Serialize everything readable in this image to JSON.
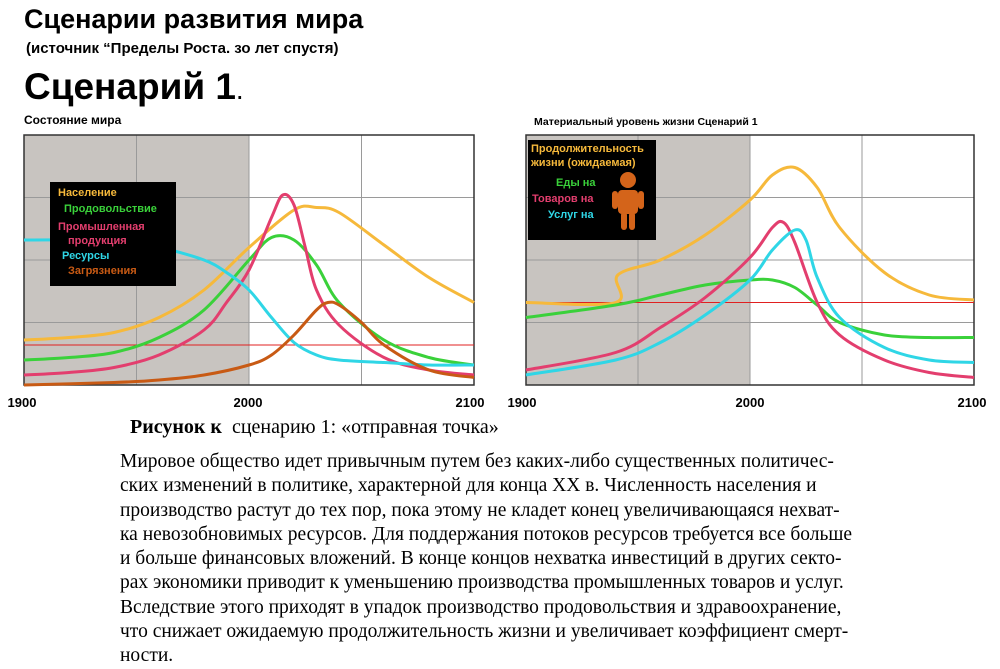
{
  "header": {
    "title": "Сценарии развития мира",
    "source": "(источник “Пределы Роста. зо лет спустя)",
    "scenario": "Сценарий 1",
    "scenario_dot": "."
  },
  "colors": {
    "population": "#f6b93b",
    "food": "#3ad13a",
    "industrial": "#e33e6e",
    "resources": "#2fd6e6",
    "pollution": "#c85a14",
    "reference": "#e02020",
    "shade": "#c8c4c0",
    "legend_bg": "#000000"
  },
  "chart_data": [
    {
      "type": "line",
      "title": "Состояние мира",
      "x_ticks": [
        "1900",
        "2000",
        "2100"
      ],
      "xlim": [
        1900,
        2100
      ],
      "ylim": [
        0,
        1
      ],
      "grid": true,
      "shaded_range": [
        1900,
        2000
      ],
      "reference_line": 0.16,
      "legend_position": "left",
      "series": [
        {
          "name": "Население",
          "color": "#f6b93b",
          "x": [
            1900,
            1920,
            1940,
            1960,
            1980,
            2000,
            2020,
            2030,
            2040,
            2060,
            2080,
            2100
          ],
          "y": [
            0.18,
            0.19,
            0.21,
            0.27,
            0.38,
            0.55,
            0.7,
            0.71,
            0.69,
            0.56,
            0.43,
            0.33
          ]
        },
        {
          "name": "Продовольствие",
          "color": "#3ad13a",
          "x": [
            1900,
            1920,
            1940,
            1960,
            1980,
            2000,
            2010,
            2020,
            2030,
            2040,
            2060,
            2080,
            2100
          ],
          "y": [
            0.1,
            0.11,
            0.13,
            0.19,
            0.3,
            0.5,
            0.59,
            0.58,
            0.48,
            0.33,
            0.18,
            0.11,
            0.08
          ]
        },
        {
          "name": "Промышленная продукция",
          "color": "#e33e6e",
          "x": [
            1900,
            1920,
            1940,
            1960,
            1980,
            1990,
            2000,
            2010,
            2015,
            2020,
            2025,
            2030,
            2040,
            2060,
            2080,
            2100
          ],
          "y": [
            0.04,
            0.05,
            0.07,
            0.12,
            0.22,
            0.33,
            0.46,
            0.67,
            0.76,
            0.72,
            0.55,
            0.38,
            0.24,
            0.11,
            0.06,
            0.04
          ]
        },
        {
          "name": "Ресурсы",
          "color": "#2fd6e6",
          "x": [
            1900,
            1920,
            1940,
            1960,
            1980,
            1990,
            2000,
            2010,
            2020,
            2030,
            2040,
            2060,
            2080,
            2100
          ],
          "y": [
            0.58,
            0.58,
            0.57,
            0.55,
            0.5,
            0.45,
            0.38,
            0.27,
            0.17,
            0.12,
            0.1,
            0.09,
            0.08,
            0.08
          ]
        },
        {
          "name": "Загрязнения",
          "color": "#c85a14",
          "x": [
            1900,
            1940,
            1960,
            1980,
            2000,
            2010,
            2020,
            2030,
            2035,
            2040,
            2050,
            2060,
            2080,
            2100
          ],
          "y": [
            0.0,
            0.01,
            0.02,
            0.04,
            0.08,
            0.12,
            0.2,
            0.3,
            0.33,
            0.32,
            0.25,
            0.16,
            0.06,
            0.03
          ]
        }
      ]
    },
    {
      "type": "line",
      "title": "Материальный уровень жизни Сценарий 1",
      "x_ticks": [
        "1900",
        "2000",
        "2100"
      ],
      "xlim": [
        1900,
        2100
      ],
      "ylim": [
        0,
        1
      ],
      "grid": true,
      "shaded_range": [
        1900,
        2000
      ],
      "reference_line": 0.33,
      "legend_position": "top-left",
      "series": [
        {
          "name": "Продолжительность жизни (ожидаемая)",
          "color": "#f6b93b",
          "x": [
            1900,
            1940,
            1941,
            1960,
            1980,
            2000,
            2010,
            2020,
            2030,
            2040,
            2060,
            2080,
            2100
          ],
          "y": [
            0.33,
            0.33,
            0.44,
            0.5,
            0.6,
            0.74,
            0.84,
            0.87,
            0.79,
            0.63,
            0.45,
            0.36,
            0.34
          ]
        },
        {
          "name": "Еды на",
          "color": "#3ad13a",
          "x": [
            1900,
            1940,
            1960,
            1980,
            2000,
            2010,
            2020,
            2030,
            2040,
            2060,
            2080,
            2100
          ],
          "y": [
            0.27,
            0.32,
            0.36,
            0.4,
            0.42,
            0.42,
            0.39,
            0.32,
            0.25,
            0.2,
            0.19,
            0.19
          ]
        },
        {
          "name": "Товаров на",
          "color": "#e33e6e",
          "x": [
            1900,
            1940,
            1960,
            1980,
            2000,
            2010,
            2015,
            2020,
            2030,
            2040,
            2060,
            2080,
            2100
          ],
          "y": [
            0.06,
            0.13,
            0.23,
            0.35,
            0.51,
            0.63,
            0.65,
            0.57,
            0.33,
            0.2,
            0.1,
            0.05,
            0.03
          ]
        },
        {
          "name": "Услуг на",
          "color": "#2fd6e6",
          "x": [
            1900,
            1940,
            1960,
            1980,
            2000,
            2010,
            2020,
            2025,
            2030,
            2040,
            2060,
            2080,
            2100
          ],
          "y": [
            0.04,
            0.1,
            0.17,
            0.28,
            0.42,
            0.54,
            0.62,
            0.58,
            0.43,
            0.27,
            0.15,
            0.1,
            0.09
          ]
        }
      ]
    }
  ],
  "legend1": [
    "Население",
    "Продовольствие",
    "Промышленная",
    "продукция",
    "Ресурсы",
    "Загрязнения"
  ],
  "legend2": [
    "Продолжительность",
    "жизни (ожидаемая)",
    "Еды на",
    "Товаров на",
    "Услуг на"
  ],
  "person_icon": "person-icon",
  "caption": {
    "bold_part": "Рисунок к",
    "rest": "сценарию 1: «отправная точка»"
  },
  "body_lines": [
    "Мировое общество идет привычным путем без каких-либо существенных политичес-",
    "ских изменений в политике, характерной для конца XX в. Численность населения и",
    "производство растут до тех пор, пока этому не кладет конец увеличивающаяся нехват-",
    "ка невозобновимых ресурсов. Для поддержания потоков ресурсов требуется все больше",
    "и больше финансовых вложений. В конце концов нехватка инвестиций в других секто-",
    "рах экономики приводит к уменьшению производства промышленных товаров и услуг.",
    "Вследствие этого приходят в упадок производство продовольствия и здравоохранение,",
    "что снижает ожидаемую продолжительность жизни и увеличивает коэффициент смерт-",
    "ности."
  ]
}
